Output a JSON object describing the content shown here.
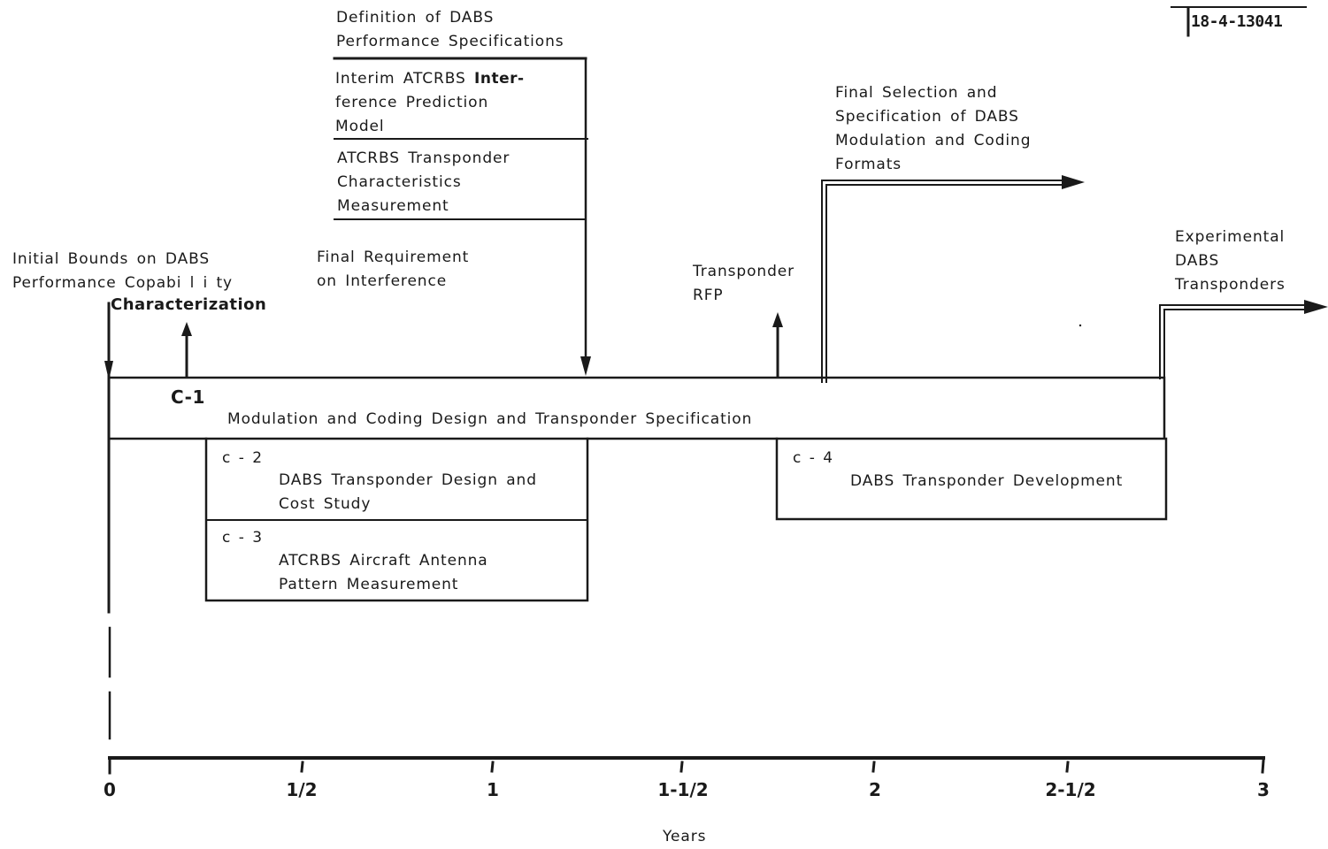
{
  "ref_number": "18-4-13041",
  "axis": {
    "label": "Years",
    "ticks": [
      "0",
      "1/2",
      "1",
      "1-1/2",
      "2",
      "2-1/2",
      "3"
    ]
  },
  "milestones": {
    "definition": [
      "Definition of DABS",
      "Performance Specifications"
    ],
    "interim_prefix": "Interim ATCRBS ",
    "interim_bold": "Inter-",
    "interim_rest": [
      "ference Prediction",
      "Model"
    ],
    "transponder_char": [
      "ATCRBS Transponder",
      "Characteristics",
      "Measurement"
    ],
    "final_selection": [
      "Final Selection and",
      "Specification of DABS",
      "Modulation and Coding",
      "Formats"
    ],
    "initial_bounds": [
      "Initial Bounds on DABS",
      "Performance Copabi l i ty"
    ],
    "characterization": "Characterization",
    "final_requirement": [
      "Final Requirement",
      "on Interference"
    ],
    "transponder_rfp": [
      "Transponder",
      "RFP"
    ],
    "experimental": [
      "Experimental",
      "DABS",
      "Transponders"
    ]
  },
  "tasks": {
    "c1": {
      "code": "C-1",
      "title": "Modulation and Coding Design and Transponder Specification"
    },
    "c2": {
      "code": "c - 2",
      "title": [
        "DABS Transponder Design and",
        "Cost Study"
      ]
    },
    "c3": {
      "code": "c - 3",
      "title": [
        "ATCRBS Aircraft Antenna",
        "Pattern Measurement"
      ]
    },
    "c4": {
      "code": "c - 4",
      "title": "DABS Transponder Development"
    }
  }
}
